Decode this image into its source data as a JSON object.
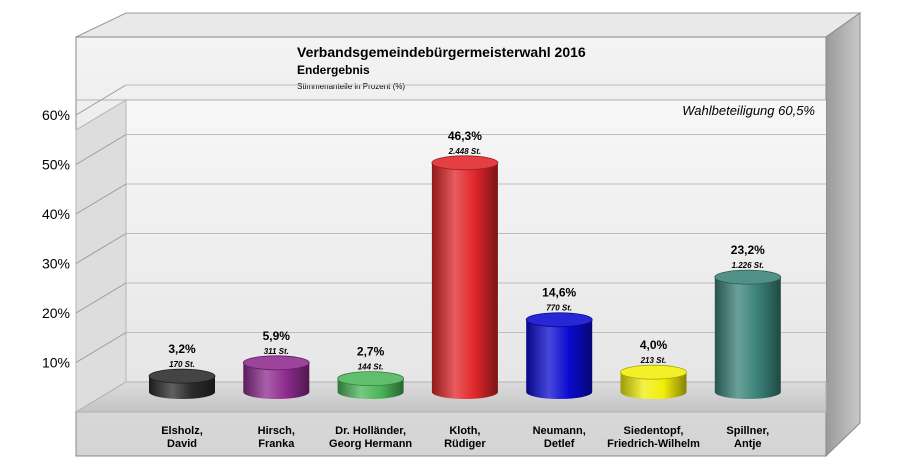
{
  "chart_data": {
    "type": "bar",
    "title": "Verbandsgemeindebürgermeisterwahl 2016",
    "subtitle": "Endergebnis",
    "caption": "Stimmenanteile in Prozent (%)",
    "annotation": "Wahlbeteiligung 60,5%",
    "categories": [
      [
        "Elsholz,",
        "David"
      ],
      [
        "Hirsch,",
        "Franka"
      ],
      [
        "Dr. Holländer,",
        "Georg Hermann"
      ],
      [
        "Kloth,",
        "Rüdiger"
      ],
      [
        "Neumann,",
        "Detlef"
      ],
      [
        "Siedentopf,",
        "Friedrich-Wilhelm"
      ],
      [
        "Spillner,",
        "Antje"
      ]
    ],
    "values": [
      3.2,
      5.9,
      2.7,
      46.3,
      14.6,
      4.0,
      23.2
    ],
    "value_labels": [
      "3,2%",
      "5,9%",
      "2,7%",
      "46,3%",
      "14,6%",
      "4,0%",
      "23,2%"
    ],
    "votes_labels": [
      "170 St.",
      "311 St.",
      "144 St.",
      "2.448 St.",
      "770 St.",
      "213 St.",
      "1.226 St."
    ],
    "colors": [
      "#2b2b2b",
      "#8e2b8e",
      "#4bb559",
      "#e0262a",
      "#0a0ad0",
      "#f2ee0a",
      "#3a8278"
    ],
    "yticks": [
      "10%",
      "20%",
      "30%",
      "40%",
      "50%",
      "60%"
    ],
    "ytick_values": [
      10,
      20,
      30,
      40,
      50,
      60
    ],
    "ylim": [
      0,
      60
    ],
    "grid": true
  }
}
